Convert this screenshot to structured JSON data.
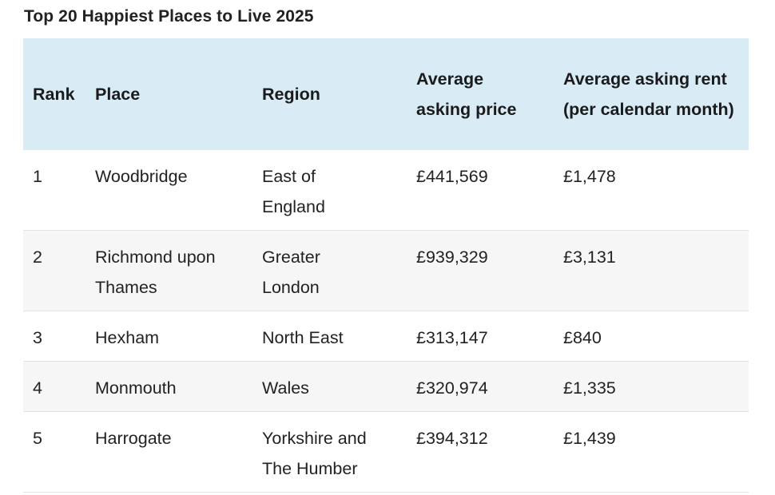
{
  "title": "Top 20 Happiest Places to Live 2025",
  "table": {
    "headers": {
      "rank": "Rank",
      "place": "Place",
      "region": "Region",
      "price": "Average asking price",
      "rent": "Average asking rent (per calendar month)"
    },
    "rows": [
      {
        "rank": "1",
        "place": "Woodbridge",
        "region": "East of England",
        "price": "£441,569",
        "rent": "£1,478"
      },
      {
        "rank": "2",
        "place": "Richmond upon Thames",
        "region": "Greater London",
        "price": "£939,329",
        "rent": "£3,131"
      },
      {
        "rank": "3",
        "place": "Hexham",
        "region": "North East",
        "price": "£313,147",
        "rent": "£840"
      },
      {
        "rank": "4",
        "place": "Monmouth",
        "region": "Wales",
        "price": "£320,974",
        "rent": "£1,335"
      },
      {
        "rank": "5",
        "place": "Harrogate",
        "region": "Yorkshire and The Humber",
        "price": "£394,312",
        "rent": "£1,439"
      }
    ]
  },
  "colors": {
    "header_bg": "#d9ecf6",
    "alt_row_bg": "#f6f6f6",
    "row_border": "#e3e3e3"
  }
}
